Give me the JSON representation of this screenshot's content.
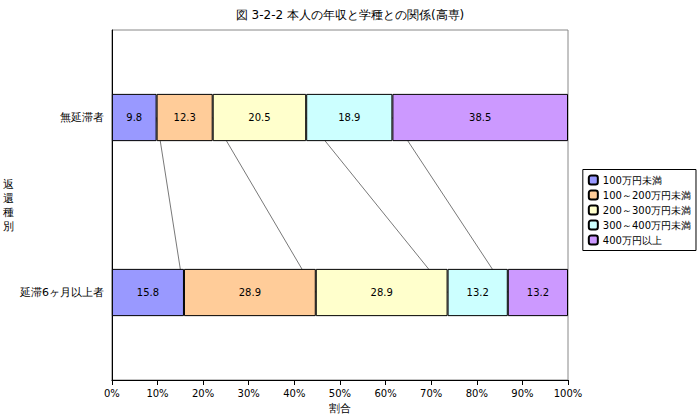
{
  "chart_data": {
    "type": "bar",
    "title": "図 3-2-2 本人の年収と学種との関係(高専)",
    "xlabel": "割合",
    "ylabel": "返還種別",
    "orientation": "horizontal",
    "stacked": true,
    "data_labels": true,
    "grid": false,
    "legend": "right",
    "categories": [
      "無延滞者",
      "延滞6ヶ月以上者"
    ],
    "series": [
      {
        "name": "100万円未満",
        "color": "#9999ff",
        "values": [
          9.8,
          15.8
        ]
      },
      {
        "name": "100～200万円未満",
        "color": "#ffcc99",
        "values": [
          12.3,
          28.9
        ]
      },
      {
        "name": "200～300万円未満",
        "color": "#ffffcc",
        "values": [
          20.5,
          28.9
        ]
      },
      {
        "name": "300～400万円未満",
        "color": "#ccffff",
        "values": [
          18.9,
          13.2
        ]
      },
      {
        "name": "400万円以上",
        "color": "#cc99ff",
        "values": [
          38.5,
          13.2
        ]
      }
    ],
    "xlim": [
      0,
      100
    ],
    "xticks": [
      {
        "value": 0,
        "label": "0%"
      },
      {
        "value": 10,
        "label": "10%"
      },
      {
        "value": 20,
        "label": "20%"
      },
      {
        "value": 30,
        "label": "30%"
      },
      {
        "value": 40,
        "label": "40%"
      },
      {
        "value": 50,
        "label": "50%"
      },
      {
        "value": 60,
        "label": "60%"
      },
      {
        "value": 70,
        "label": "70%"
      },
      {
        "value": 80,
        "label": "80%"
      },
      {
        "value": 90,
        "label": "90%"
      },
      {
        "value": 100,
        "label": "100%"
      }
    ]
  }
}
